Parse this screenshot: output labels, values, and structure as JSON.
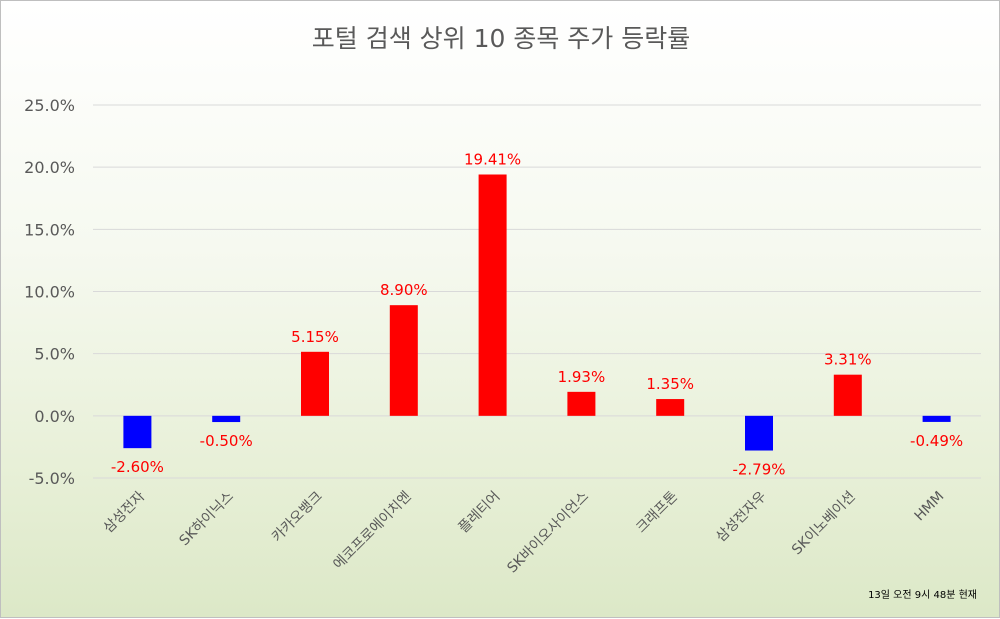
{
  "chart_data": {
    "type": "bar",
    "title": "포털 검색 상위 10 종목 주가 등락률",
    "categories": [
      "삼성전자",
      "SK하이닉스",
      "카카오뱅크",
      "에코프로에이치엔",
      "플레티어",
      "SK바이오사이언스",
      "크래프톤",
      "삼성전자우",
      "SK이노베이션",
      "HMM"
    ],
    "values": [
      -2.6,
      -0.5,
      5.15,
      8.9,
      19.41,
      1.93,
      1.35,
      -2.79,
      3.31,
      -0.49
    ],
    "data_labels": [
      "-2.60%",
      "-0.50%",
      "5.15%",
      "8.90%",
      "19.41%",
      "1.93%",
      "1.35%",
      "-2.79%",
      "3.31%",
      "-0.49%"
    ],
    "y_ticks": [
      "25.0%",
      "20.0%",
      "15.0%",
      "10.0%",
      "5.0%",
      "0.0%",
      "-5.0%"
    ],
    "ylim": [
      -5,
      25
    ],
    "grid": true,
    "colors": {
      "positive": "#ff0000",
      "negative": "#0000ff",
      "label": "#ff0000"
    }
  },
  "footnote": "13일 오전 9시 48분 현재"
}
